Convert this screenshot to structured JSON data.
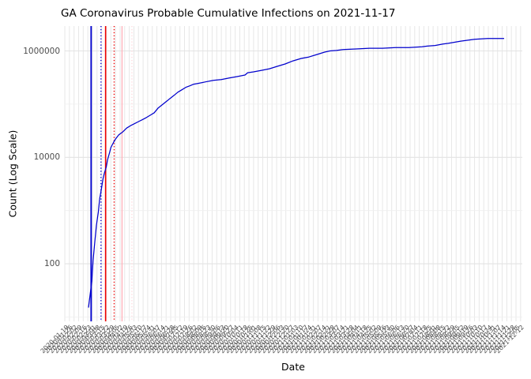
{
  "title": "GA Coronavirus Probable Cumulative Infections on 2021-11-17",
  "x_axis": {
    "label": "Date",
    "tick_labels": [
      "2020-01-19",
      "2020-01-26",
      "2020-02-02",
      "2020-02-09",
      "2020-02-16",
      "2020-02-23",
      "2020-03-01",
      "2020-03-08",
      "2020-03-15",
      "2020-03-22",
      "2020-03-29",
      "2020-04-05",
      "2020-04-12",
      "2020-04-19",
      "2020-04-26",
      "2020-05-03",
      "2020-05-10",
      "2020-05-17",
      "2020-05-24",
      "2020-05-31",
      "2020-06-07",
      "2020-06-14",
      "2020-06-21",
      "2020-06-28",
      "2020-07-05",
      "2020-07-12",
      "2020-07-19",
      "2020-07-26",
      "2020-08-02",
      "2020-08-09",
      "2020-08-16",
      "2020-08-23",
      "2020-08-30",
      "2020-09-06",
      "2020-09-13",
      "2020-09-20",
      "2020-09-27",
      "2020-10-04",
      "2020-10-11",
      "2020-10-18",
      "2020-10-25",
      "2020-11-01",
      "2020-11-08",
      "2020-11-15",
      "2020-11-22",
      "2020-11-29",
      "2020-12-06",
      "2020-12-13",
      "2020-12-20",
      "2020-12-27",
      "2021-01-03",
      "2021-01-10",
      "2021-01-17",
      "2021-01-24",
      "2021-01-31",
      "2021-02-07",
      "2021-02-14",
      "2021-02-21",
      "2021-02-28",
      "2021-03-07",
      "2021-03-14",
      "2021-03-21",
      "2021-03-28",
      "2021-04-04",
      "2021-04-11",
      "2021-04-18",
      "2021-04-25",
      "2021-05-02",
      "2021-05-09",
      "2021-05-16",
      "2021-05-23",
      "2021-05-30",
      "2021-06-06",
      "2021-06-13",
      "2021-06-20",
      "2021-06-27",
      "2021-07-04",
      "2021-07-11",
      "2021-07-18",
      "2021-07-25",
      "2021-08-01",
      "2021-08-08",
      "2021-08-15",
      "2021-08-22",
      "2021-08-29",
      "2021-09-05",
      "2021-09-12",
      "2021-09-19",
      "2021-09-26",
      "2021-10-03",
      "2021-10-10",
      "2021-10-17",
      "2021-10-24",
      "2021-10-31",
      "2021-11-07",
      "2021-11-14",
      "2021-11-21",
      "2021-11-28",
      "2021-12-05",
      "2021-12-12"
    ]
  },
  "y_axis": {
    "label": "Count (Log Scale)",
    "tick_labels": [
      "1000000",
      "10000",
      "100"
    ],
    "tick_values": [
      1000000,
      10000,
      100
    ],
    "minor_values": [
      100000,
      1000,
      10
    ]
  },
  "colors": {
    "line": "#0000cd",
    "event_blue": "#0000cd",
    "event_red": "#ee0000",
    "event_pink": "#ffb3bc",
    "event_pink_light": "#ffd9de",
    "grid_vertical": "#e7e7e7",
    "grid_major": "#e3e3e3",
    "grid_minor": "#efefef",
    "axis_text": "#4d4d4d",
    "title_text": "#000000"
  },
  "event_lines": [
    {
      "name": "event-line-blue-solid",
      "date": "2020-02-28",
      "color_key": "event_blue",
      "style": "solid",
      "width": 1.8
    },
    {
      "name": "event-line-blue-dotted",
      "date": "2020-03-14",
      "color_key": "event_blue",
      "style": "dotted",
      "width": 1.4
    },
    {
      "name": "event-line-red-solid",
      "date": "2020-03-21",
      "color_key": "event_red",
      "style": "solid",
      "width": 1.6
    },
    {
      "name": "event-line-red-dotted",
      "date": "2020-04-03",
      "color_key": "event_red",
      "style": "dotted",
      "width": 1.4
    },
    {
      "name": "event-line-pink-solid",
      "date": "2020-04-15",
      "color_key": "event_pink",
      "style": "solid",
      "width": 1.4
    },
    {
      "name": "event-line-pink-dotted",
      "date": "2020-04-30",
      "color_key": "event_pink_light",
      "style": "dotted",
      "width": 1.4
    }
  ],
  "chart_data": {
    "type": "line",
    "title": "GA Coronavirus Probable Cumulative Infections on 2021-11-17",
    "xlabel": "Date",
    "ylabel": "Count (Log Scale)",
    "series_name": "probable-cumulative-infections",
    "line_color": "#0000cd",
    "yscale": "log",
    "ylim": [
      8,
      3000000
    ],
    "x_range": [
      "2020-01-19",
      "2021-12-15"
    ],
    "grid": true,
    "legend": false,
    "x": [
      "2020-02-24",
      "2020-02-26",
      "2020-02-29",
      "2020-03-02",
      "2020-03-05",
      "2020-03-07",
      "2020-03-10",
      "2020-03-12",
      "2020-03-15",
      "2020-03-17",
      "2020-03-19",
      "2020-03-22",
      "2020-03-24",
      "2020-03-27",
      "2020-03-29",
      "2020-04-02",
      "2020-04-05",
      "2020-04-10",
      "2020-04-16",
      "2020-04-22",
      "2020-04-28",
      "2020-05-04",
      "2020-05-10",
      "2020-05-16",
      "2020-05-22",
      "2020-05-28",
      "2020-06-03",
      "2020-06-09",
      "2020-06-15",
      "2020-06-21",
      "2020-06-27",
      "2020-07-03",
      "2020-07-09",
      "2020-07-15",
      "2020-07-21",
      "2020-07-27",
      "2020-08-02",
      "2020-08-08",
      "2020-08-14",
      "2020-08-20",
      "2020-09-01",
      "2020-09-13",
      "2020-09-25",
      "2020-10-07",
      "2020-10-19",
      "2020-10-23",
      "2020-11-01",
      "2020-11-13",
      "2020-11-25",
      "2020-12-07",
      "2020-12-19",
      "2020-12-31",
      "2021-01-12",
      "2021-01-24",
      "2021-02-05",
      "2021-02-17",
      "2021-02-25",
      "2021-03-07",
      "2021-03-17",
      "2021-04-06",
      "2021-04-26",
      "2021-05-16",
      "2021-06-05",
      "2021-06-25",
      "2021-07-15",
      "2021-07-23",
      "2021-08-04",
      "2021-08-16",
      "2021-08-24",
      "2021-09-12",
      "2021-10-03",
      "2021-10-23",
      "2021-11-17"
    ],
    "y": [
      15,
      24,
      47,
      115,
      290,
      530,
      950,
      1650,
      2700,
      3900,
      5000,
      6600,
      9000,
      12200,
      15300,
      19000,
      22000,
      26500,
      30000,
      35500,
      39500,
      43000,
      47000,
      51000,
      56000,
      62000,
      69000,
      85000,
      97000,
      111000,
      128000,
      146000,
      168000,
      186000,
      207000,
      221000,
      237000,
      245000,
      253000,
      262000,
      280000,
      290000,
      310000,
      330000,
      353000,
      390000,
      404000,
      432000,
      462000,
      513000,
      570000,
      650000,
      720000,
      770000,
      855000,
      950000,
      1000000,
      1020000,
      1060000,
      1090000,
      1125000,
      1125000,
      1160000,
      1160000,
      1195000,
      1230000,
      1265000,
      1345000,
      1390000,
      1530000,
      1650000,
      1710000,
      1710000
    ]
  }
}
